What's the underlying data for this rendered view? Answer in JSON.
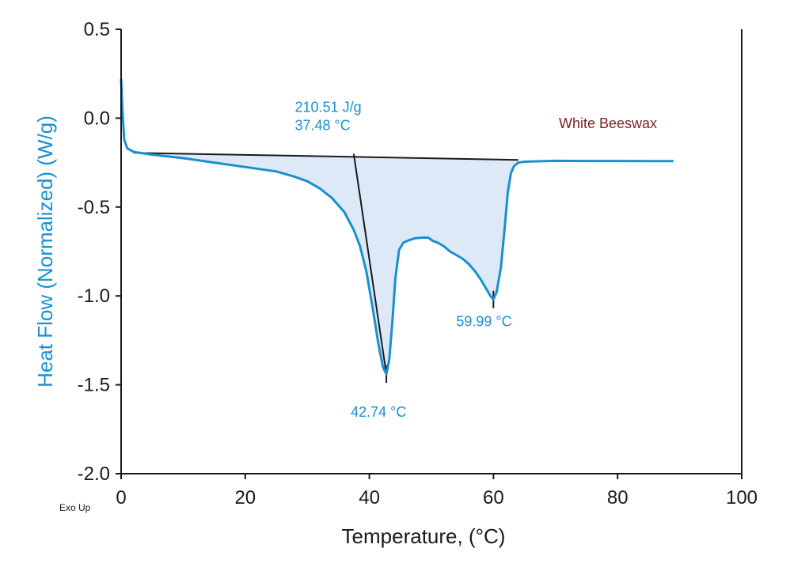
{
  "chart_data": {
    "type": "line",
    "xlabel": "Temperature, (°C)",
    "ylabel": "Heat Flow (Normalized) (W/g)",
    "xlim": [
      0,
      100
    ],
    "ylim": [
      -2.0,
      0.5
    ],
    "x_ticks": [
      0,
      20,
      40,
      60,
      80,
      100
    ],
    "x_tick_labels": [
      "0",
      "20",
      "40",
      "60",
      "80",
      "100"
    ],
    "y_ticks": [
      0.5,
      0.0,
      -0.5,
      -1.0,
      -1.5,
      -2.0
    ],
    "y_tick_labels": [
      "0.5",
      "0.0",
      "-0.5",
      "-1.0",
      "-1.5",
      "-2.0"
    ],
    "grid": false,
    "corner_note": "Exo Up",
    "series": [
      {
        "name": "White Beeswax",
        "color": "#1a8fd0",
        "x": [
          0.0,
          0.2,
          0.5,
          1.0,
          2.0,
          5,
          10,
          15,
          20,
          25,
          28,
          30,
          32,
          34,
          36,
          37.5,
          38.5,
          39.5,
          40.5,
          41.5,
          42.2,
          42.74,
          43.2,
          43.7,
          44.2,
          44.8,
          45.5,
          46.5,
          47.5,
          48.5,
          49.5,
          50.2,
          51,
          52,
          53,
          54,
          55,
          56,
          57,
          58,
          59,
          59.5,
          59.99,
          60.5,
          61.2,
          61.8,
          62.3,
          62.8,
          63.3,
          64,
          65,
          67,
          70,
          75,
          80,
          85,
          89
        ],
        "y": [
          0.22,
          0.05,
          -0.12,
          -0.17,
          -0.19,
          -0.205,
          -0.225,
          -0.25,
          -0.275,
          -0.3,
          -0.33,
          -0.355,
          -0.395,
          -0.45,
          -0.53,
          -0.63,
          -0.72,
          -0.86,
          -1.06,
          -1.28,
          -1.4,
          -1.44,
          -1.36,
          -1.15,
          -0.9,
          -0.74,
          -0.7,
          -0.685,
          -0.675,
          -0.672,
          -0.672,
          -0.69,
          -0.7,
          -0.72,
          -0.75,
          -0.77,
          -0.79,
          -0.82,
          -0.86,
          -0.91,
          -0.97,
          -1.0,
          -1.02,
          -0.98,
          -0.84,
          -0.62,
          -0.42,
          -0.31,
          -0.27,
          -0.25,
          -0.245,
          -0.243,
          -0.24,
          -0.241,
          -0.241,
          -0.242,
          -0.242
        ]
      }
    ],
    "baseline": {
      "x": [
        2,
        64
      ],
      "y": [
        -0.195,
        -0.235
      ]
    },
    "onset_line": {
      "x": [
        37.48,
        42.74
      ],
      "y": [
        -0.2,
        -1.44
      ]
    },
    "annotations": [
      {
        "id": "enthalpy",
        "lines": [
          "210.51 J/g",
          "37.48 °C"
        ],
        "x": 28.0,
        "y": 0.035
      },
      {
        "id": "peak1",
        "lines": [
          "42.74 °C"
        ],
        "x": 37.0,
        "y": -1.68,
        "marker": {
          "x": 42.74,
          "y": -1.44
        }
      },
      {
        "id": "peak2",
        "lines": [
          "59.99 °C"
        ],
        "x": 54.0,
        "y": -1.17,
        "marker": {
          "x": 59.99,
          "y": -1.02
        }
      }
    ],
    "legend_label": "White Beeswax",
    "legend_position": "top-right",
    "colors": {
      "curve": "#1a8fd0",
      "fill": "#dde9f7",
      "axis": "#1a1a1a",
      "ylabel": "#1a8fd0",
      "annotation": "#1a8fd0",
      "legend_text": "#7a1f2b",
      "lines": "#1a1a1a"
    }
  }
}
